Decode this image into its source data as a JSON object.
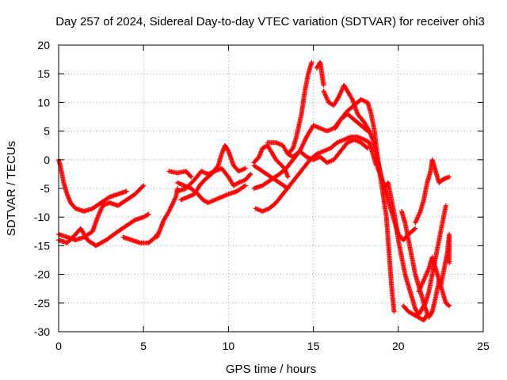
{
  "chart_data": {
    "type": "scatter",
    "title": "Day 257 of 2024, Sidereal Day-to-day VTEC variation (SDTVAR) for receiver ohi3",
    "xlabel": "GPS time / hours",
    "ylabel": "SDTVAR / TECUs",
    "xlim": [
      0,
      25
    ],
    "ylim": [
      -30,
      20
    ],
    "x_ticks": [
      "0",
      "5",
      "10",
      "15",
      "20",
      "25"
    ],
    "y_ticks": [
      "-30",
      "-25",
      "-20",
      "-15",
      "-10",
      "-5",
      "0",
      "5",
      "10",
      "15",
      "20"
    ],
    "grid": true,
    "marker": "+",
    "color": "#ff0000",
    "series": [
      {
        "points": [
          [
            0.0,
            0
          ],
          [
            0.1,
            -1
          ],
          [
            0.2,
            -2.5
          ],
          [
            0.3,
            -4
          ],
          [
            0.5,
            -6
          ],
          [
            0.7,
            -7.5
          ],
          [
            1.0,
            -8.5
          ],
          [
            1.5,
            -9
          ],
          [
            2.0,
            -8.5
          ],
          [
            2.5,
            -7.5
          ],
          [
            3.0,
            -6.5
          ],
          [
            3.5,
            -6
          ],
          [
            4.0,
            -5.5
          ]
        ]
      },
      {
        "points": [
          [
            0.0,
            -13
          ],
          [
            0.5,
            -13.5
          ],
          [
            1.0,
            -14
          ],
          [
            1.5,
            -13.5
          ],
          [
            2.0,
            -12.5
          ],
          [
            2.3,
            -10
          ],
          [
            2.6,
            -8
          ],
          [
            3.0,
            -7.5
          ],
          [
            3.5,
            -8
          ],
          [
            4.0,
            -7
          ],
          [
            4.5,
            -6
          ],
          [
            5.0,
            -4.5
          ]
        ]
      },
      {
        "points": [
          [
            0.0,
            -14
          ],
          [
            0.5,
            -14.5
          ],
          [
            1.0,
            -13
          ],
          [
            1.3,
            -12
          ],
          [
            1.7,
            -14
          ],
          [
            2.2,
            -15
          ],
          [
            2.8,
            -14
          ],
          [
            3.5,
            -12.5
          ],
          [
            4.0,
            -11.5
          ],
          [
            4.5,
            -10.5
          ],
          [
            5.0,
            -10
          ],
          [
            5.3,
            -9.5
          ]
        ]
      },
      {
        "points": [
          [
            3.8,
            -13.5
          ],
          [
            4.3,
            -14
          ],
          [
            4.8,
            -14.5
          ],
          [
            5.3,
            -14.5
          ],
          [
            5.7,
            -13.5
          ],
          [
            5.8,
            -13
          ]
        ]
      },
      {
        "points": [
          [
            5.8,
            -13.5
          ],
          [
            6.0,
            -12
          ],
          [
            6.2,
            -10.5
          ],
          [
            6.5,
            -9
          ],
          [
            6.9,
            -6.5
          ],
          [
            7.0,
            -5
          ]
        ]
      },
      {
        "points": [
          [
            6.5,
            -2
          ],
          [
            7.0,
            -2.3
          ],
          [
            7.5,
            -2
          ],
          [
            7.8,
            -3
          ]
        ]
      },
      {
        "points": [
          [
            7.0,
            -4
          ],
          [
            7.4,
            -4.5
          ],
          [
            7.8,
            -5
          ],
          [
            8.2,
            -6
          ],
          [
            8.5,
            -7
          ],
          [
            8.8,
            -7.5
          ],
          [
            9.2,
            -7
          ],
          [
            9.6,
            -6.5
          ],
          [
            10.0,
            -6
          ],
          [
            10.5,
            -5.5
          ],
          [
            11.0,
            -4.5
          ]
        ]
      },
      {
        "points": [
          [
            7.0,
            -5.5
          ],
          [
            7.5,
            -5
          ],
          [
            8.0,
            -3.5
          ],
          [
            8.4,
            -2
          ],
          [
            8.8,
            -2.5
          ],
          [
            9.2,
            -2
          ],
          [
            9.6,
            -1.5
          ],
          [
            10.0,
            -3
          ],
          [
            10.3,
            -4.5
          ],
          [
            10.6,
            -4
          ],
          [
            11.0,
            -3.5
          ],
          [
            11.3,
            -2.5
          ]
        ]
      },
      {
        "points": [
          [
            7.2,
            -7
          ],
          [
            7.6,
            -6.5
          ],
          [
            8.0,
            -6
          ],
          [
            8.3,
            -4.5
          ],
          [
            8.6,
            -3.5
          ],
          [
            9.0,
            -2.5
          ],
          [
            9.4,
            -1
          ],
          [
            9.6,
            1
          ],
          [
            9.8,
            2.5
          ],
          [
            10.0,
            1.5
          ],
          [
            10.3,
            -1
          ],
          [
            10.6,
            -2
          ],
          [
            11.0,
            -1.5
          ]
        ]
      },
      {
        "points": [
          [
            11.5,
            -1
          ],
          [
            12.0,
            -2
          ],
          [
            12.5,
            -3
          ],
          [
            13.0,
            -4
          ],
          [
            13.5,
            -5
          ]
        ]
      },
      {
        "points": [
          [
            11.6,
            -8.5
          ],
          [
            12.0,
            -9
          ],
          [
            12.4,
            -8.5
          ],
          [
            12.8,
            -7.5
          ],
          [
            13.2,
            -6
          ],
          [
            13.6,
            -4.5
          ],
          [
            14.0,
            -3
          ],
          [
            14.4,
            -1.5
          ],
          [
            14.8,
            0
          ],
          [
            15.2,
            1
          ],
          [
            15.6,
            1.5
          ],
          [
            16.0,
            2
          ],
          [
            16.4,
            3
          ],
          [
            16.8,
            3.5
          ],
          [
            17.2,
            4
          ],
          [
            17.6,
            4
          ],
          [
            18.0,
            3.5
          ],
          [
            18.3,
            3
          ],
          [
            18.5,
            1
          ],
          [
            18.7,
            -1
          ]
        ]
      },
      {
        "points": [
          [
            11.5,
            -5
          ],
          [
            12.0,
            -4.5
          ],
          [
            12.5,
            -3.5
          ],
          [
            13.0,
            -2.5
          ],
          [
            13.4,
            -1.5
          ],
          [
            13.8,
            0
          ],
          [
            14.2,
            1.5
          ],
          [
            14.6,
            0.5
          ],
          [
            15.0,
            0
          ],
          [
            15.4,
            0.5
          ],
          [
            15.8,
            -0.5
          ],
          [
            16.2,
            0
          ],
          [
            16.6,
            1.5
          ],
          [
            17.0,
            3
          ],
          [
            17.4,
            3.5
          ],
          [
            17.8,
            3
          ],
          [
            18.2,
            2
          ]
        ]
      },
      {
        "points": [
          [
            11.5,
            -0.5
          ],
          [
            11.8,
            0.5
          ],
          [
            12.0,
            2
          ],
          [
            12.3,
            2.5
          ],
          [
            12.8,
            0
          ],
          [
            13.3,
            -1.5
          ],
          [
            13.5,
            -3
          ]
        ]
      },
      {
        "points": [
          [
            12.3,
            3
          ],
          [
            12.8,
            3
          ],
          [
            13.2,
            2.5
          ],
          [
            13.5,
            1
          ],
          [
            13.8,
            0.5
          ],
          [
            14.2,
            1.5
          ],
          [
            14.6,
            4
          ],
          [
            15.0,
            6
          ],
          [
            15.4,
            5.5
          ],
          [
            15.8,
            5
          ],
          [
            16.2,
            5.5
          ],
          [
            16.6,
            7
          ],
          [
            17.0,
            8
          ],
          [
            17.4,
            7
          ],
          [
            17.8,
            6
          ],
          [
            18.2,
            5
          ]
        ]
      },
      {
        "points": [
          [
            13.5,
            1
          ],
          [
            13.8,
            2
          ],
          [
            14.0,
            4
          ],
          [
            14.3,
            8
          ],
          [
            14.5,
            12
          ],
          [
            14.7,
            15
          ],
          [
            14.9,
            17
          ]
        ]
      },
      {
        "points": [
          [
            15.2,
            16
          ],
          [
            15.4,
            17
          ],
          [
            15.5,
            15
          ],
          [
            15.6,
            13
          ]
        ]
      },
      {
        "points": [
          [
            15.6,
            12
          ],
          [
            15.9,
            10
          ],
          [
            16.2,
            9.5
          ],
          [
            16.5,
            11
          ],
          [
            16.8,
            13
          ],
          [
            17.0,
            12
          ],
          [
            17.3,
            10.5
          ],
          [
            17.6,
            8
          ],
          [
            18.0,
            6.5
          ],
          [
            18.3,
            5
          ],
          [
            18.5,
            3.5
          ],
          [
            18.7,
            1
          ],
          [
            18.9,
            -2
          ],
          [
            19.1,
            -6
          ],
          [
            19.3,
            -10
          ],
          [
            19.4,
            -14
          ],
          [
            19.5,
            -18
          ],
          [
            19.6,
            -22
          ],
          [
            19.7,
            -25
          ],
          [
            19.75,
            -26.5
          ]
        ]
      },
      {
        "points": [
          [
            16.3,
            5.5
          ],
          [
            16.6,
            7
          ],
          [
            17.0,
            8.5
          ],
          [
            17.4,
            9.5
          ],
          [
            17.8,
            10.5
          ],
          [
            18.2,
            10
          ],
          [
            18.4,
            8
          ],
          [
            18.6,
            5
          ],
          [
            18.8,
            0
          ],
          [
            19.0,
            -3
          ],
          [
            19.2,
            -5
          ],
          [
            19.4,
            -7
          ],
          [
            19.6,
            -9
          ],
          [
            19.8,
            -11
          ],
          [
            20.0,
            -13
          ],
          [
            20.3,
            -14
          ],
          [
            20.6,
            -13
          ],
          [
            21.0,
            -12
          ]
        ]
      },
      {
        "points": [
          [
            18.8,
            -1.5
          ],
          [
            19.0,
            -3
          ],
          [
            19.2,
            -5
          ],
          [
            19.4,
            -4
          ],
          [
            19.6,
            -7
          ],
          [
            19.8,
            -10
          ],
          [
            20.0,
            -14
          ],
          [
            20.2,
            -17
          ],
          [
            20.4,
            -20
          ],
          [
            20.6,
            -22
          ],
          [
            20.8,
            -24
          ],
          [
            21.0,
            -26
          ],
          [
            21.2,
            -27
          ],
          [
            21.4,
            -26
          ],
          [
            21.6,
            -25
          ],
          [
            21.8,
            -23
          ],
          [
            22.0,
            -20
          ],
          [
            22.2,
            -17
          ],
          [
            22.4,
            -14
          ],
          [
            22.6,
            -11
          ],
          [
            22.8,
            -8
          ]
        ]
      },
      {
        "points": [
          [
            20.2,
            -9
          ],
          [
            20.4,
            -11
          ],
          [
            20.6,
            -14
          ],
          [
            20.8,
            -17
          ],
          [
            21.0,
            -20
          ],
          [
            21.2,
            -22
          ],
          [
            21.4,
            -24
          ],
          [
            21.6,
            -26
          ],
          [
            21.8,
            -27.5
          ],
          [
            22.0,
            -26.5
          ],
          [
            22.2,
            -24
          ],
          [
            22.4,
            -21
          ],
          [
            22.6,
            -23
          ],
          [
            22.8,
            -25
          ],
          [
            23.0,
            -25.5
          ]
        ]
      },
      {
        "points": [
          [
            20.3,
            -25.5
          ],
          [
            20.6,
            -26.5
          ],
          [
            20.9,
            -27
          ],
          [
            21.2,
            -27.5
          ],
          [
            21.5,
            -28
          ],
          [
            21.7,
            -27
          ]
        ]
      },
      {
        "points": [
          [
            21.2,
            -23
          ],
          [
            21.5,
            -21
          ],
          [
            21.8,
            -19
          ],
          [
            22.0,
            -17
          ],
          [
            22.3,
            -20
          ],
          [
            22.5,
            -22
          ],
          [
            22.7,
            -19
          ],
          [
            22.9,
            -16
          ],
          [
            23.0,
            -13
          ],
          [
            23.0,
            -18
          ]
        ]
      },
      {
        "points": [
          [
            21.0,
            -11
          ],
          [
            21.3,
            -9
          ],
          [
            21.5,
            -7
          ],
          [
            21.7,
            -4
          ],
          [
            21.9,
            -2
          ],
          [
            22.0,
            0
          ],
          [
            22.2,
            -2
          ],
          [
            22.4,
            -4
          ],
          [
            22.6,
            -3.5
          ],
          [
            22.8,
            -3.2
          ],
          [
            23.0,
            -3
          ]
        ]
      }
    ]
  }
}
